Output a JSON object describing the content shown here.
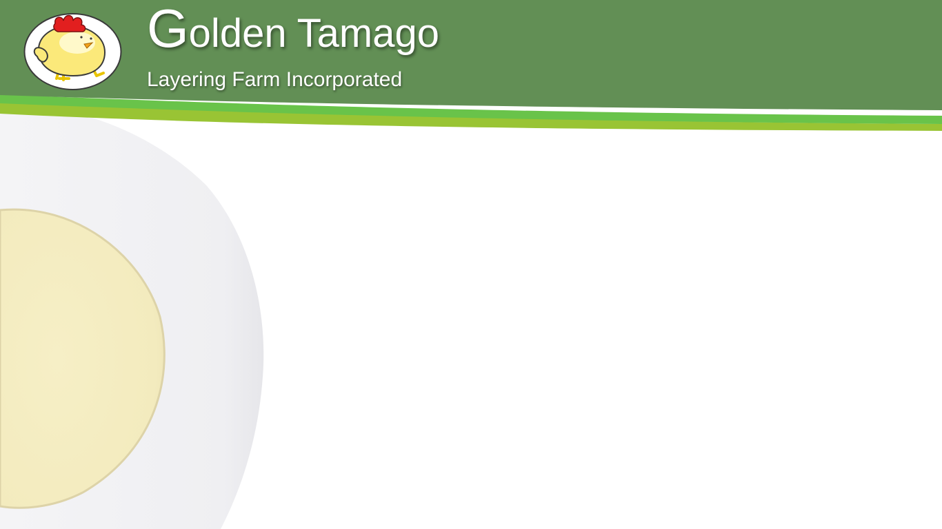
{
  "brand": {
    "title_initial": "G",
    "title_rest": "olden Tamago",
    "subtitle": "Layering Farm Incorporated",
    "logo_icon": "chick-icon"
  },
  "colors": {
    "header_green": "#628f55",
    "stripe_light_green": "#69c34a",
    "stripe_lime": "#99c434",
    "egg_white": "#f2f2f4",
    "egg_yolk": "#f5edc0",
    "text": "#ffffff"
  },
  "background": {
    "decoration": "egg-halves-icon"
  }
}
